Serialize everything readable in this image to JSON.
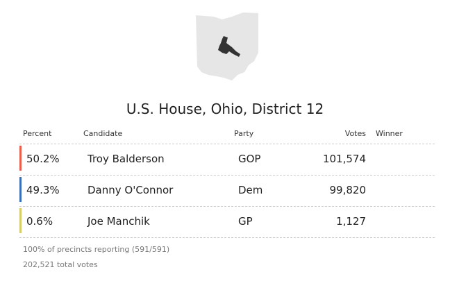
{
  "header": {
    "title": "U.S. House, Ohio, District 12"
  },
  "table": {
    "columns": [
      "Percent",
      "Candidate",
      "Party",
      "Votes",
      "Winner"
    ],
    "rows": [
      {
        "percent": "50.2%",
        "candidate": "Troy Balderson",
        "party": "GOP",
        "votes": "101,574",
        "color": "#e8604c"
      },
      {
        "percent": "49.3%",
        "candidate": "Danny O'Connor",
        "party": "Dem",
        "votes": "99,820",
        "color": "#3a6fb8"
      },
      {
        "percent": "0.6%",
        "candidate": "Joe Manchik",
        "party": "GP",
        "votes": "1,127",
        "color": "#d8cc6a"
      }
    ]
  },
  "footer": {
    "precincts": "100% of precincts reporting (591/591)",
    "total": "202,521 total votes"
  }
}
